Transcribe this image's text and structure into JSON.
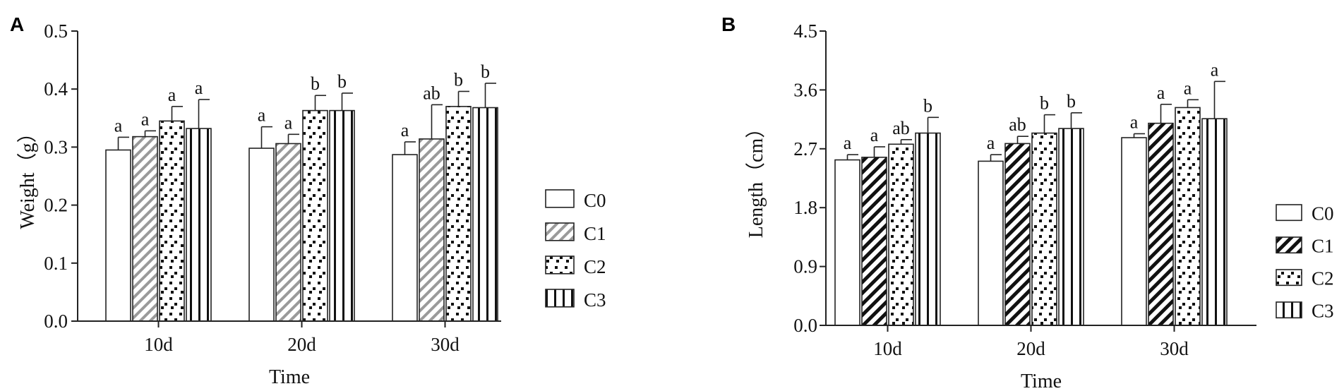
{
  "chart_data": [
    {
      "type": "bar",
      "panel_label": "A",
      "title": "",
      "xlabel": "Time",
      "ylabel": "Weight（g）",
      "ylim": [
        0,
        0.5
      ],
      "yticks": [
        "0.0",
        "0.1",
        "0.2",
        "0.3",
        "0.4",
        "0.5"
      ],
      "categories": [
        "10d",
        "20d",
        "30d"
      ],
      "legend_position": "right",
      "series": [
        {
          "name": "C0",
          "pattern": "blank",
          "values": [
            0.295,
            0.298,
            0.287
          ],
          "errors": [
            0.022,
            0.037,
            0.022
          ],
          "letters": [
            "a",
            "a",
            "a"
          ]
        },
        {
          "name": "C1",
          "pattern": "light-diagonal",
          "values": [
            0.318,
            0.306,
            0.314
          ],
          "errors": [
            0.01,
            0.016,
            0.059
          ],
          "letters": [
            "a",
            "a",
            "ab"
          ]
        },
        {
          "name": "C2",
          "pattern": "dots",
          "values": [
            0.345,
            0.363,
            0.37
          ],
          "errors": [
            0.025,
            0.026,
            0.026
          ],
          "letters": [
            "a",
            "b",
            "b"
          ]
        },
        {
          "name": "C3",
          "pattern": "vertical-lines",
          "values": [
            0.332,
            0.363,
            0.368
          ],
          "errors": [
            0.05,
            0.03,
            0.042
          ],
          "letters": [
            "a",
            "b",
            "b"
          ]
        }
      ]
    },
    {
      "type": "bar",
      "panel_label": "B",
      "title": "",
      "xlabel": "Time",
      "ylabel": "Length（cm）",
      "ylim": [
        0,
        4.5
      ],
      "yticks": [
        "0.0",
        "0.9",
        "1.8",
        "2.7",
        "3.6",
        "4.5"
      ],
      "categories": [
        "10d",
        "20d",
        "30d"
      ],
      "legend_position": "right",
      "series": [
        {
          "name": "C0",
          "pattern": "blank",
          "values": [
            2.53,
            2.51,
            2.87
          ],
          "errors": [
            0.08,
            0.1,
            0.06
          ],
          "letters": [
            "a",
            "a",
            "a"
          ]
        },
        {
          "name": "C1",
          "pattern": "bold-diagonal",
          "values": [
            2.57,
            2.78,
            3.09
          ],
          "errors": [
            0.16,
            0.11,
            0.29
          ],
          "letters": [
            "a",
            "ab",
            "a"
          ]
        },
        {
          "name": "C2",
          "pattern": "dots",
          "values": [
            2.77,
            2.94,
            3.33
          ],
          "errors": [
            0.07,
            0.28,
            0.12
          ],
          "letters": [
            "ab",
            "b",
            "a"
          ]
        },
        {
          "name": "C3",
          "pattern": "vertical-lines",
          "values": [
            2.94,
            3.01,
            3.16
          ],
          "errors": [
            0.24,
            0.24,
            0.57
          ],
          "letters": [
            "b",
            "b",
            "a"
          ]
        }
      ]
    }
  ]
}
